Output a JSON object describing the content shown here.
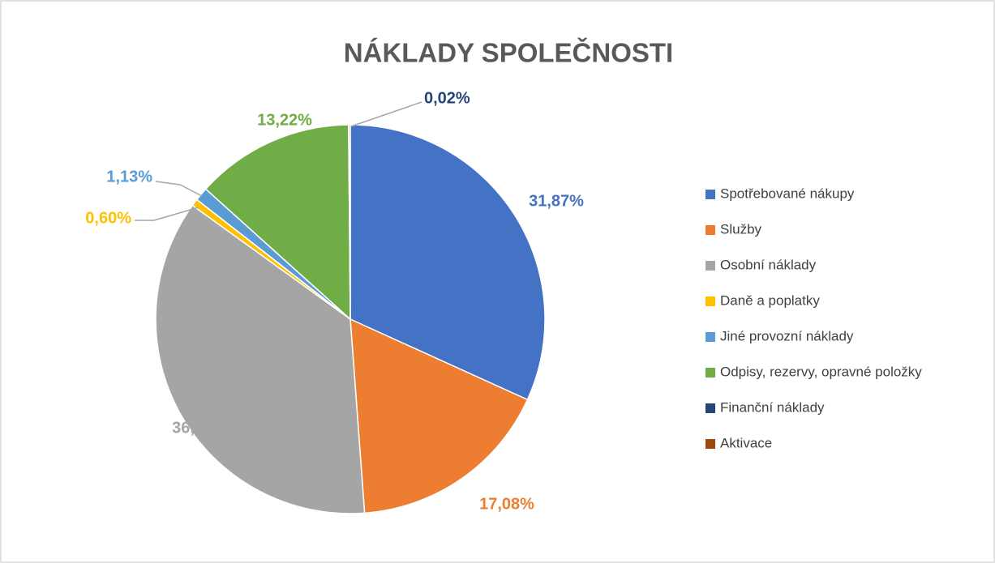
{
  "chart_data": {
    "type": "pie",
    "title": "NÁKLADY SPOLEČNOSTI",
    "categories": [
      "Spotřebované nákupy",
      "Služby",
      "Osobní náklady",
      "Daně a poplatky",
      "Jiné provozní náklady",
      "Odpisy, rezervy, opravné položky",
      "Finanční náklady",
      "Aktivace"
    ],
    "values": [
      31.87,
      17.08,
      36.2,
      0.6,
      1.13,
      13.22,
      0.02,
      0.12
    ],
    "value_labels": [
      "31,87%",
      "17,08%",
      "36,20%",
      "0,60%",
      "1,13%",
      "13,22%",
      "0,02%",
      null
    ],
    "colors": [
      "#4472c4",
      "#ed7d31",
      "#a5a5a5",
      "#ffc000",
      "#5b9bd5",
      "#70ad47",
      "#264478",
      "#9e480e"
    ],
    "legend": "right"
  }
}
